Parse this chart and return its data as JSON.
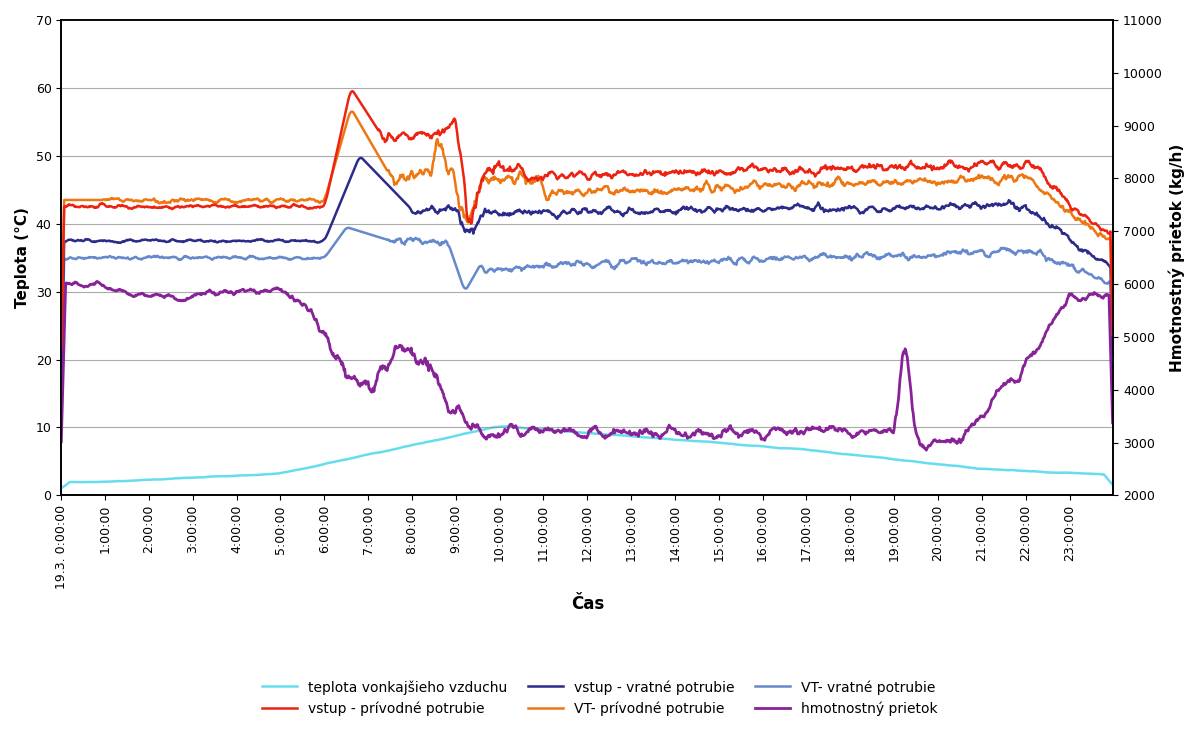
{
  "title": "",
  "xlabel": "Čas",
  "ylabel_left": "Teplota (°C)",
  "ylabel_right": "Hmotnostný prietok (kg/h)",
  "ylim_left": [
    0,
    70
  ],
  "ylim_right": [
    2000,
    11000
  ],
  "yticks_left": [
    0,
    10,
    20,
    30,
    40,
    50,
    60,
    70
  ],
  "yticks_right": [
    2000,
    3000,
    4000,
    5000,
    6000,
    7000,
    8000,
    9000,
    10000,
    11000
  ],
  "xtick_labels": [
    "19.3. 0:00:00",
    "1:00:00",
    "2:00:00",
    "3:00:00",
    "4:00:00",
    "5:00:00",
    "6:00:00",
    "7:00:00",
    "8:00:00",
    "9:00:00",
    "10:00:00",
    "11:00:00",
    "12:00:00",
    "13:00:00",
    "14:00:00",
    "15:00:00",
    "16:00:00",
    "17:00:00",
    "18:00:00",
    "19:00:00",
    "20:00:00",
    "21:00:00",
    "22:00:00",
    "23:00:00"
  ],
  "series": {
    "teplota_vonkajsieho_vzduchu": {
      "label": "teplota vonkajšieho vzduchu",
      "color": "#66DDEE",
      "linewidth": 1.8
    },
    "vstup_privodne": {
      "label": "vstup - prívodné potrubie",
      "color": "#EE2211",
      "linewidth": 1.8
    },
    "vstup_vratne": {
      "label": "vstup - vratné potrubie",
      "color": "#2B2B8A",
      "linewidth": 1.8
    },
    "VT_privodne": {
      "label": "VT- prívodné potrubie",
      "color": "#EE7711",
      "linewidth": 1.8
    },
    "VT_vratne": {
      "label": "VT- vratné potrubie",
      "color": "#6688CC",
      "linewidth": 1.8
    },
    "hmotnostny_prietok": {
      "label": "hmotnostný prietok",
      "color": "#882299",
      "linewidth": 2.0
    }
  },
  "legend_fontsize": 10,
  "axis_fontsize": 11,
  "tick_fontsize": 9,
  "background_color": "#ffffff",
  "grid_color": "#888888",
  "grid_alpha": 0.7,
  "grid_linewidth": 0.8
}
